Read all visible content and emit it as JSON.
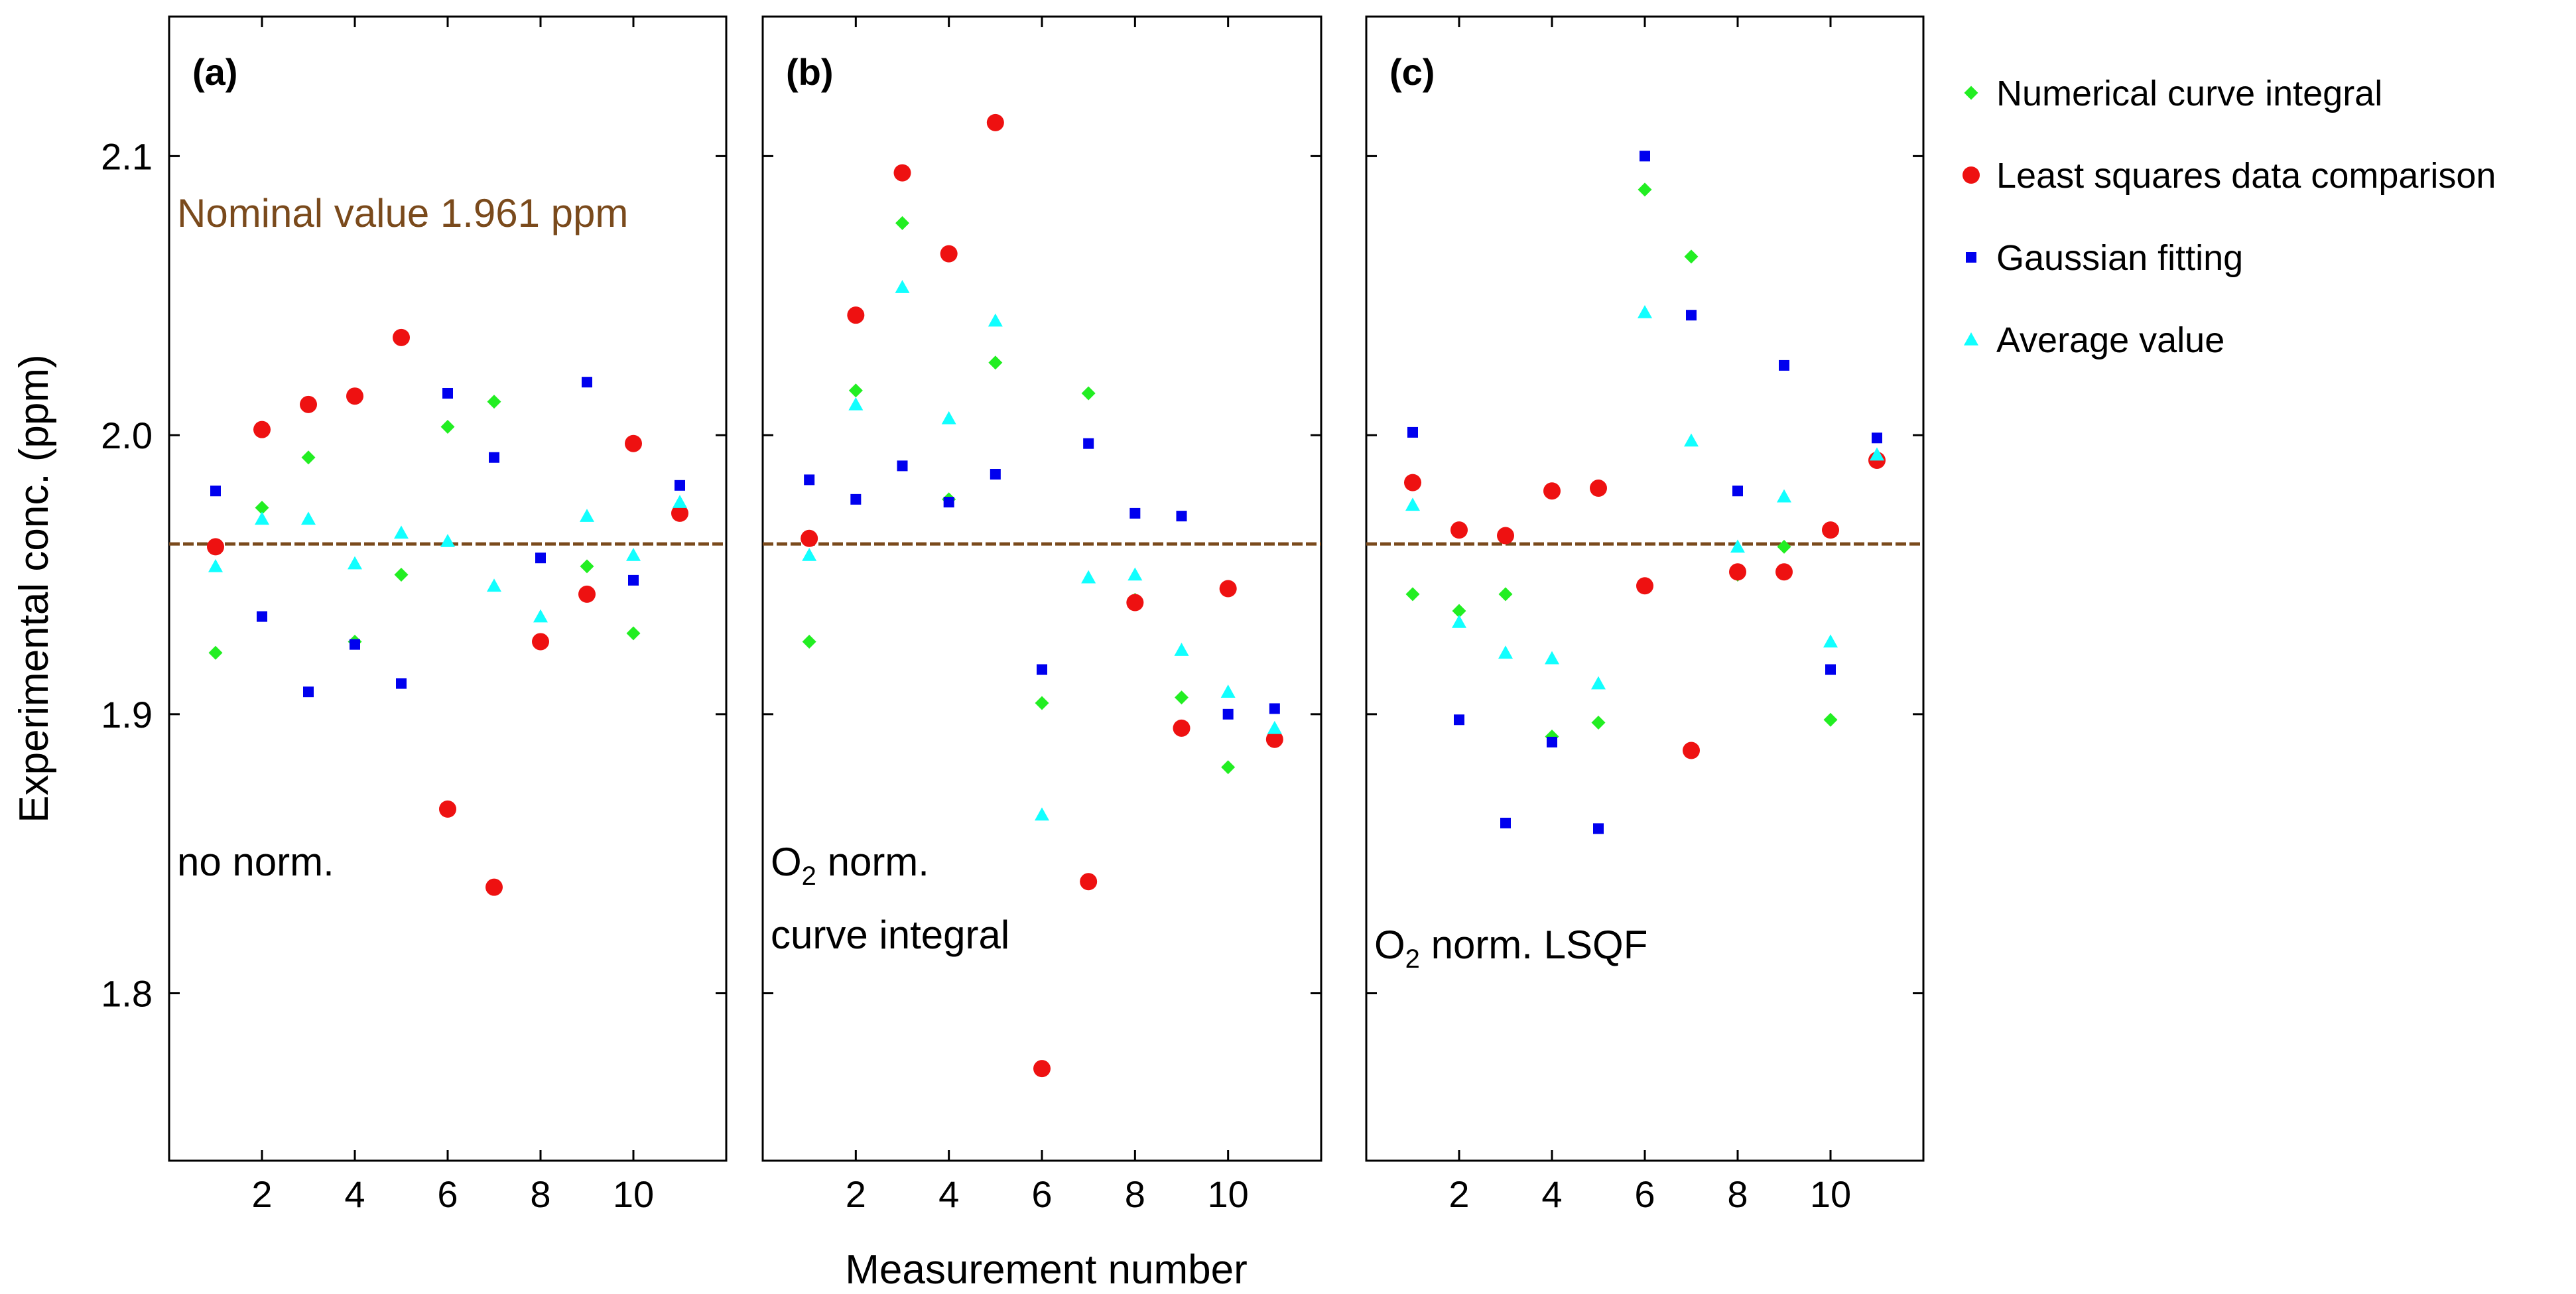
{
  "chart_data": {
    "type": "scatter",
    "ylabel": "Experimental conc.  (ppm)",
    "xlabel": "Measurement number",
    "ylim": [
      1.74,
      2.15
    ],
    "xlim": [
      0,
      12
    ],
    "x_ticks": [
      2,
      4,
      6,
      8,
      10
    ],
    "x_tick_labels": [
      "2",
      "4",
      "6",
      "8",
      "10"
    ],
    "y_ticks": [
      1.8,
      1.9,
      2.0,
      2.1
    ],
    "y_tick_labels": [
      "1.8",
      "1.9",
      "2.0",
      "2.1"
    ],
    "x": [
      1,
      2,
      3,
      4,
      5,
      6,
      7,
      8,
      9,
      10,
      11
    ],
    "reference_line": {
      "value": 1.961,
      "label": "Nominal value 1.961 ppm",
      "color": "#7a4a1c"
    },
    "legend_position": "right",
    "series_styles": [
      {
        "name": "Numerical curve integral",
        "marker": "diamond",
        "color": "#22ee22"
      },
      {
        "name": "Least squares data comparison",
        "marker": "circle",
        "color": "#ee1111"
      },
      {
        "name": "Gaussian fitting",
        "marker": "square",
        "color": "#0000ee"
      },
      {
        "name": "Average value",
        "marker": "triangle",
        "color": "#11ffff"
      }
    ],
    "panels": [
      {
        "label": "(a)",
        "annotation_lines": [
          "no norm."
        ],
        "series": [
          {
            "name": "Numerical curve integral",
            "values": [
              1.922,
              1.974,
              1.992,
              1.926,
              1.95,
              2.003,
              2.012,
              1.926,
              1.953,
              1.929,
              1.974
            ]
          },
          {
            "name": "Least squares data comparison",
            "values": [
              1.96,
              2.002,
              2.011,
              2.014,
              2.035,
              1.866,
              1.838,
              1.926,
              1.943,
              1.997,
              1.972
            ]
          },
          {
            "name": "Gaussian fitting",
            "values": [
              1.98,
              1.935,
              1.908,
              1.925,
              1.911,
              2.015,
              1.992,
              1.956,
              2.019,
              1.948,
              1.982
            ]
          },
          {
            "name": "Average value",
            "values": [
              1.953,
              1.97,
              1.97,
              1.954,
              1.965,
              1.962,
              1.946,
              1.935,
              1.971,
              1.957,
              1.976
            ]
          }
        ]
      },
      {
        "label": "(b)",
        "annotation_lines": [
          "O2 norm.",
          "curve integral"
        ],
        "series": [
          {
            "name": "Numerical curve integral",
            "values": [
              1.926,
              2.016,
              2.076,
              1.977,
              2.026,
              1.904,
              2.015,
              1.941,
              1.906,
              1.881,
              1.893
            ]
          },
          {
            "name": "Least squares data comparison",
            "values": [
              1.963,
              2.043,
              2.094,
              2.065,
              2.112,
              1.773,
              1.84,
              1.94,
              1.895,
              1.945,
              1.891
            ]
          },
          {
            "name": "Gaussian fitting",
            "values": [
              1.984,
              1.977,
              1.989,
              1.976,
              1.986,
              1.916,
              1.997,
              1.972,
              1.971,
              1.9,
              1.902
            ]
          },
          {
            "name": "Average value",
            "values": [
              1.957,
              2.011,
              2.053,
              2.006,
              2.041,
              1.864,
              1.949,
              1.95,
              1.923,
              1.908,
              1.895
            ]
          }
        ]
      },
      {
        "label": "(c)",
        "annotation_lines": [
          "O2 norm. LSQF"
        ],
        "series": [
          {
            "name": "Numerical curve integral",
            "values": [
              1.943,
              1.937,
              1.943,
              1.892,
              1.897,
              2.088,
              2.064,
              1.95,
              1.96,
              1.898,
              1.992
            ]
          },
          {
            "name": "Least squares data comparison",
            "values": [
              1.983,
              1.966,
              1.964,
              1.98,
              1.981,
              1.946,
              1.887,
              1.951,
              1.951,
              1.966,
              1.991
            ]
          },
          {
            "name": "Gaussian fitting",
            "values": [
              2.001,
              1.898,
              1.861,
              1.89,
              1.859,
              2.1,
              2.043,
              1.98,
              2.025,
              1.916,
              1.999
            ]
          },
          {
            "name": "Average value",
            "values": [
              1.975,
              1.933,
              1.922,
              1.92,
              1.911,
              2.044,
              1.998,
              1.96,
              1.978,
              1.926,
              1.993
            ]
          }
        ]
      }
    ]
  }
}
